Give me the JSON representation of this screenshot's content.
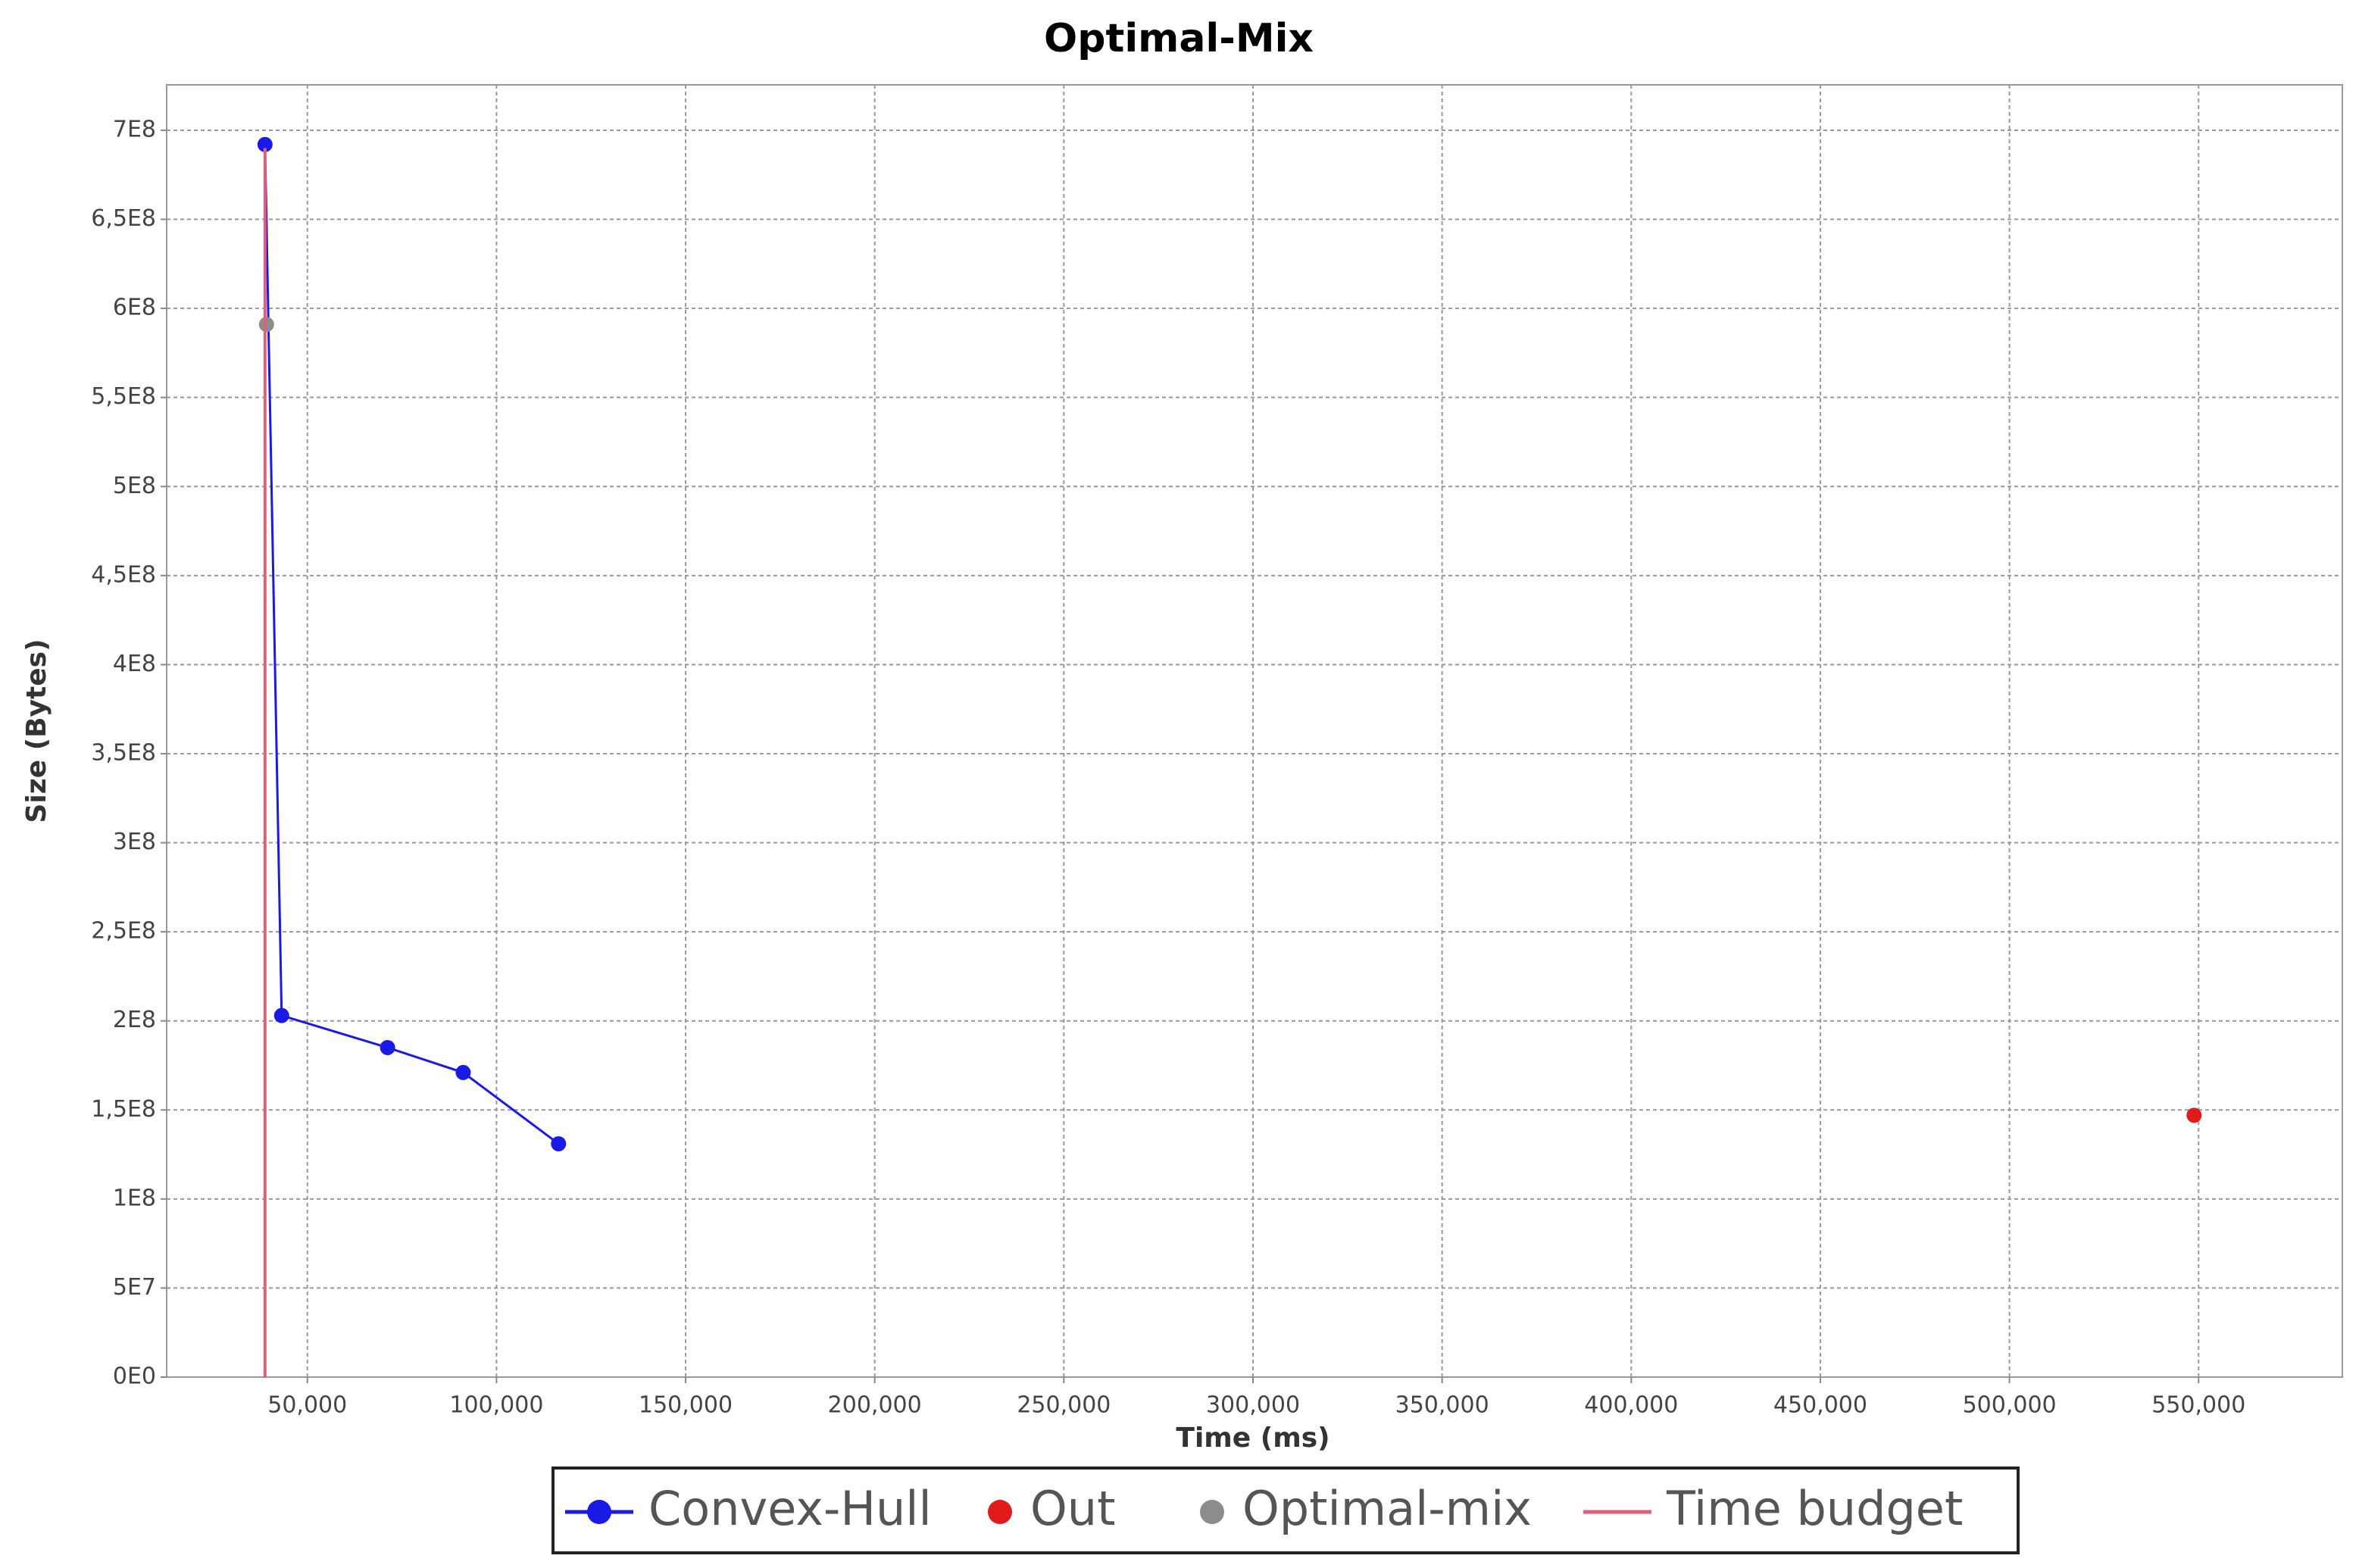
{
  "chart_data": {
    "type": "scatter",
    "title": "Optimal-Mix",
    "x_label": "Time (ms)",
    "y_label": "Size (Bytes)",
    "xlim": [
      12800,
      588000
    ],
    "ylim": [
      0,
      725500000
    ],
    "xticks": [
      {
        "value": 50000,
        "label": "50,000"
      },
      {
        "value": 100000,
        "label": "100,000"
      },
      {
        "value": 150000,
        "label": "150,000"
      },
      {
        "value": 200000,
        "label": "200,000"
      },
      {
        "value": 250000,
        "label": "250,000"
      },
      {
        "value": 300000,
        "label": "300,000"
      },
      {
        "value": 350000,
        "label": "350,000"
      },
      {
        "value": 400000,
        "label": "400,000"
      },
      {
        "value": 450000,
        "label": "450,000"
      },
      {
        "value": 500000,
        "label": "500,000"
      },
      {
        "value": 550000,
        "label": "550,000"
      }
    ],
    "yticks": [
      {
        "value": 0,
        "label": "0E0"
      },
      {
        "value": 50000000,
        "label": "5E7"
      },
      {
        "value": 100000000,
        "label": "1E8"
      },
      {
        "value": 150000000,
        "label": "1,5E8"
      },
      {
        "value": 200000000,
        "label": "2E8"
      },
      {
        "value": 250000000,
        "label": "2,5E8"
      },
      {
        "value": 300000000,
        "label": "3E8"
      },
      {
        "value": 350000000,
        "label": "3,5E8"
      },
      {
        "value": 400000000,
        "label": "4E8"
      },
      {
        "value": 450000000,
        "label": "4,5E8"
      },
      {
        "value": 500000000,
        "label": "5E8"
      },
      {
        "value": 550000000,
        "label": "5,5E8"
      },
      {
        "value": 600000000,
        "label": "6E8"
      },
      {
        "value": 650000000,
        "label": "6,5E8"
      },
      {
        "value": 700000000,
        "label": "7E8"
      }
    ],
    "grid": true,
    "series": [
      {
        "name": "Convex-Hull",
        "color": "#1a1ae6",
        "style": "line-marker",
        "x": [
          38800,
          43200,
          71200,
          91200,
          116400
        ],
        "values": [
          692000000,
          203000000,
          185000000,
          171000000,
          131000000
        ]
      },
      {
        "name": "Out",
        "color": "#e01b1b",
        "style": "marker",
        "x": [
          548800
        ],
        "values": [
          147000000
        ]
      },
      {
        "name": "Optimal-mix",
        "color": "#8c8c8c",
        "style": "marker",
        "x": [
          39200
        ],
        "values": [
          591000000
        ]
      },
      {
        "name": "Time budget",
        "color": "#e0607a",
        "style": "line",
        "x": [
          38800,
          38800
        ],
        "values": [
          0,
          690000000
        ]
      }
    ]
  }
}
